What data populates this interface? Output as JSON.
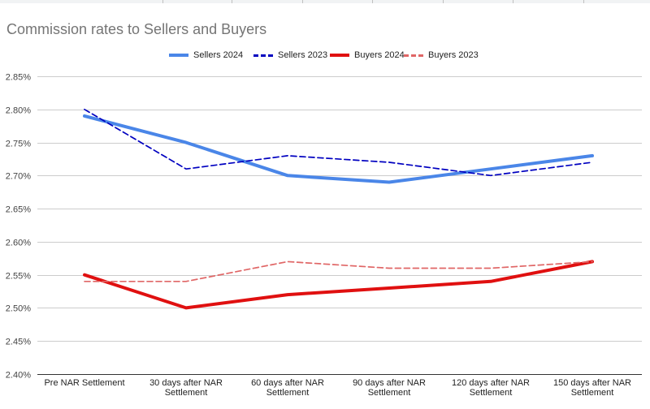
{
  "chart_data": {
    "type": "line",
    "title": "Commission rates to Sellers and Buyers",
    "xlabel": "",
    "ylabel": "",
    "categories": [
      [
        "Pre NAR Settlement"
      ],
      [
        "30 days after NAR",
        "Settlement"
      ],
      [
        "60 days after NAR",
        "Settlement"
      ],
      [
        "90 days after NAR",
        "Settlement"
      ],
      [
        "120 days after NAR",
        "Settlement"
      ],
      [
        "150 days after NAR",
        "Settlement"
      ]
    ],
    "ylim": [
      2.4,
      2.85
    ],
    "yticks": [
      2.4,
      2.45,
      2.5,
      2.55,
      2.6,
      2.65,
      2.7,
      2.75,
      2.8,
      2.85
    ],
    "ytick_format": "percent2",
    "grid": true,
    "legend_position": "top",
    "series": [
      {
        "name": "Sellers 2024",
        "values": [
          2.79,
          2.75,
          2.7,
          2.69,
          2.71,
          2.73
        ],
        "color": "#4a86e8",
        "dash": "solid",
        "weight": "thick"
      },
      {
        "name": "Sellers 2023",
        "values": [
          2.8,
          2.71,
          2.73,
          2.72,
          2.7,
          2.72
        ],
        "color": "#0000c0",
        "dash": "dashed",
        "weight": "thin"
      },
      {
        "name": "Buyers 2024",
        "values": [
          2.55,
          2.5,
          2.52,
          2.53,
          2.54,
          2.57
        ],
        "color": "#e01010",
        "dash": "solid",
        "weight": "thick"
      },
      {
        "name": "Buyers 2023",
        "values": [
          2.54,
          2.54,
          2.57,
          2.56,
          2.56,
          2.57
        ],
        "color": "#e06666",
        "dash": "dashed",
        "weight": "thin"
      }
    ]
  }
}
